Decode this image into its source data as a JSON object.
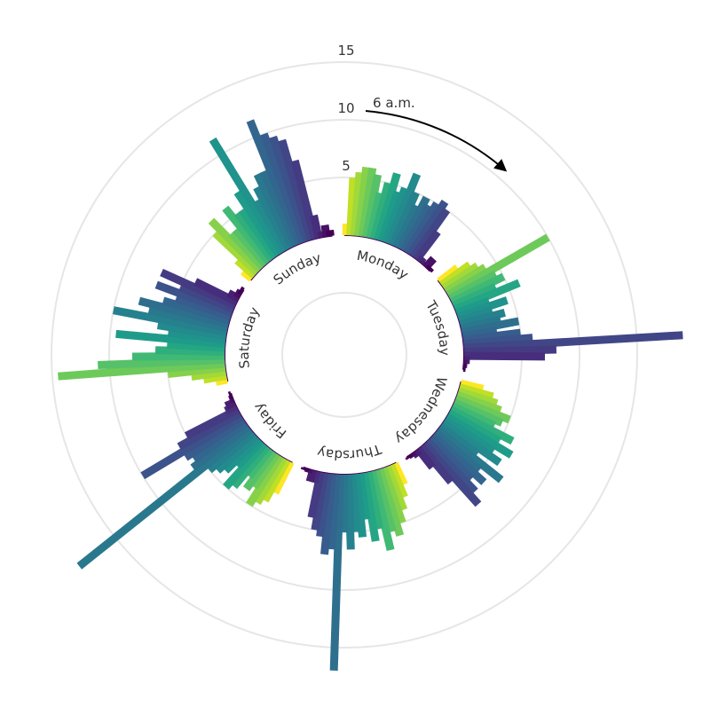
{
  "chart_data": {
    "type": "radial_bar",
    "annotation": "6 a.m.",
    "ylim": [
      -5,
      20
    ],
    "yticks": [
      5,
      10,
      15
    ],
    "grid": true,
    "colors": [
      "#fde725",
      "#c0df25",
      "#a2d93a",
      "#87d14a",
      "#6dca5a",
      "#56c168",
      "#40b975",
      "#30af7d",
      "#24a684",
      "#1f9c89",
      "#1f938c",
      "#238a8d",
      "#26818e",
      "#2a788e",
      "#2e6f8e",
      "#32668e",
      "#375c8d",
      "#3c528b",
      "#414687",
      "#453b83",
      "#472e7c",
      "#482071",
      "#471164",
      "#440154"
    ],
    "series": [
      {
        "name": "Monday",
        "values": [
          1,
          5,
          5.5,
          6,
          6,
          5.5,
          4,
          5,
          6,
          4.5,
          5,
          6.5,
          5,
          4,
          5,
          4.5,
          5,
          5.5,
          5,
          3,
          0.5,
          0.3,
          1,
          0.3
        ]
      },
      {
        "name": "Tuesday",
        "values": [
          2,
          3,
          3.5,
          4,
          10,
          4.5,
          5,
          4,
          6,
          3,
          4.5,
          3,
          4,
          3.5,
          5,
          3,
          5,
          6,
          19,
          8,
          7,
          0.5,
          0.3,
          0.2
        ]
      },
      {
        "name": "Wednesday",
        "values": [
          2,
          3,
          3.5,
          4,
          5,
          4.5,
          4,
          6,
          5,
          6.5,
          5,
          6,
          4,
          7,
          5,
          6,
          5,
          6,
          7,
          4,
          2,
          0.5,
          0.3,
          0.2
        ]
      },
      {
        "name": "Thursday",
        "values": [
          2,
          3,
          4,
          5,
          6,
          5.5,
          7,
          5,
          6,
          4,
          5.5,
          5,
          6.5,
          5,
          17,
          6.5,
          7,
          5.5,
          5,
          4,
          1,
          1,
          0.3,
          0.2
        ]
      },
      {
        "name": "Friday",
        "values": [
          3,
          4,
          4.5,
          5,
          3.5,
          4,
          3,
          4.5,
          5,
          3,
          4,
          4.5,
          5,
          19,
          6,
          5.5,
          6,
          10,
          6,
          5,
          1,
          0.8,
          0.3,
          0.2
        ]
      },
      {
        "name": "Saturday",
        "values": [
          1,
          2,
          3,
          5,
          14.5,
          11,
          8,
          6,
          5,
          9.5,
          5,
          6,
          10,
          7,
          8,
          6,
          5,
          7,
          5,
          7,
          4,
          1,
          0.5,
          0.3
        ]
      },
      {
        "name": "Sunday",
        "values": [
          1,
          2,
          5,
          6,
          4,
          4,
          6,
          5,
          5,
          6.5,
          11.5,
          5,
          6,
          7,
          7,
          11.5,
          10,
          9.5,
          9,
          7,
          2,
          0.5,
          1,
          0.5
        ]
      }
    ]
  }
}
